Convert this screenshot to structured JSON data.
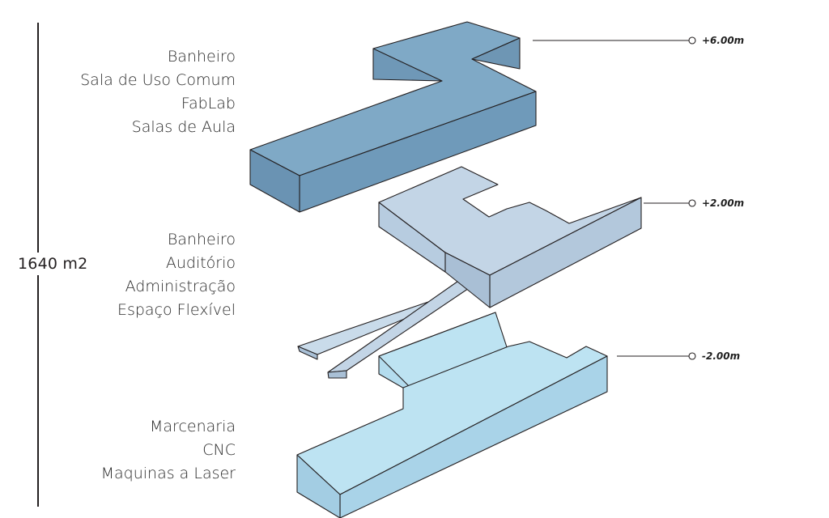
{
  "total_area": "1640 m2",
  "levels": [
    {
      "elevation": "+6.00m",
      "rooms": [
        "Banheiro",
        "Sala de Uso Comum",
        "FabLab",
        "Salas de Aula"
      ],
      "color": "#7fa9c6"
    },
    {
      "elevation": "+2.00m",
      "rooms": [
        "Banheiro",
        "Auditório",
        "Administração",
        "Espaço Flexível"
      ],
      "color": "#c3d5e6"
    },
    {
      "elevation": "-2.00m",
      "rooms": [
        "Marcenaria",
        "CNC",
        "Maquinas  a Laser"
      ],
      "color": "#bde3f2"
    }
  ],
  "colors": {
    "line": "#231f20",
    "ramp": "#c3d5e6"
  }
}
